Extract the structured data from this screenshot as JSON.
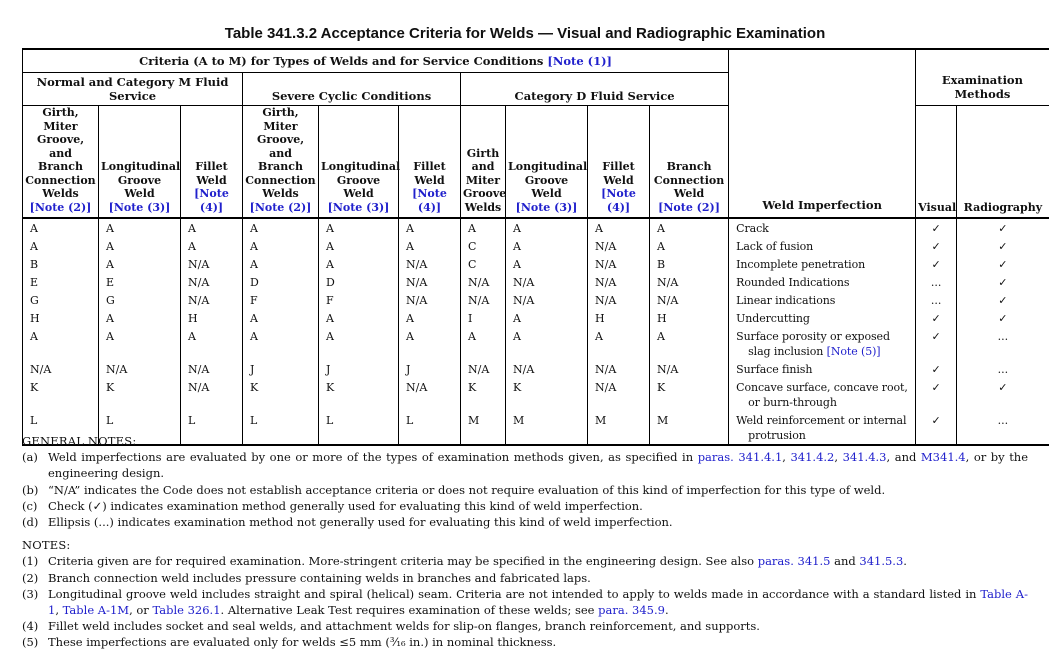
{
  "title": "Table 341.3.2 Acceptance Criteria for Welds — Visual and Radiographic Examination",
  "colors": {
    "link": "#2020cc",
    "text": "#111111",
    "border": "#000000"
  },
  "table": {
    "criteria_header": [
      {
        "t": "Criteria (A to M) for Types of Welds and for Service Conditions "
      },
      {
        "t": "[Note (1)]",
        "link": true
      }
    ],
    "service_groups": [
      "Normal and Category M Fluid Service",
      "Severe Cyclic Conditions",
      "Category D Fluid Service"
    ],
    "examination_methods_label": "Examination Methods",
    "weld_imperfection_label": "Weld Imperfection",
    "columns": [
      {
        "label": "Girth, Miter Groove, and Branch Connection Welds",
        "note": "[Note (2)]"
      },
      {
        "label": "Longitudinal Groove Weld",
        "note": "[Note (3)]"
      },
      {
        "label": "Fillet Weld",
        "note": "[Note (4)]"
      },
      {
        "label": "Girth, Miter Groove, and Branch Connection Welds",
        "note": "[Note (2)]"
      },
      {
        "label": "Longitudinal Groove Weld",
        "note": "[Note (3)]"
      },
      {
        "label": "Fillet Weld",
        "note": "[Note (4)]"
      },
      {
        "label": "Girth and Miter Groove Welds",
        "note": ""
      },
      {
        "label": "Longitudinal Groove Weld",
        "note": "[Note (3)]"
      },
      {
        "label": "Fillet Weld",
        "note": "[Note (4)]"
      },
      {
        "label": "Branch Connection Weld",
        "note": "[Note (2)]"
      }
    ],
    "exam_columns": [
      "Visual",
      "Radiography"
    ],
    "symbols": {
      "check": "✓",
      "ellipsis": "..."
    },
    "rows": [
      {
        "values": [
          "A",
          "A",
          "A",
          "A",
          "A",
          "A",
          "A",
          "A",
          "A",
          "A"
        ],
        "imperfection": [
          {
            "t": "Crack"
          }
        ],
        "visual": "check",
        "radiography": "check"
      },
      {
        "values": [
          "A",
          "A",
          "A",
          "A",
          "A",
          "A",
          "C",
          "A",
          "N/A",
          "A"
        ],
        "imperfection": [
          {
            "t": "Lack of fusion"
          }
        ],
        "visual": "check",
        "radiography": "check"
      },
      {
        "values": [
          "B",
          "A",
          "N/A",
          "A",
          "A",
          "N/A",
          "C",
          "A",
          "N/A",
          "B"
        ],
        "imperfection": [
          {
            "t": "Incomplete penetration"
          }
        ],
        "visual": "check",
        "radiography": "check"
      },
      {
        "values": [
          "E",
          "E",
          "N/A",
          "D",
          "D",
          "N/A",
          "N/A",
          "N/A",
          "N/A",
          "N/A"
        ],
        "imperfection": [
          {
            "t": "Rounded Indications"
          }
        ],
        "visual": "ellipsis",
        "radiography": "check"
      },
      {
        "values": [
          "G",
          "G",
          "N/A",
          "F",
          "F",
          "N/A",
          "N/A",
          "N/A",
          "N/A",
          "N/A"
        ],
        "imperfection": [
          {
            "t": "Linear indications"
          }
        ],
        "visual": "ellipsis",
        "radiography": "check"
      },
      {
        "values": [
          "H",
          "A",
          "H",
          "A",
          "A",
          "A",
          "I",
          "A",
          "H",
          "H"
        ],
        "imperfection": [
          {
            "t": "Undercutting"
          }
        ],
        "visual": "check",
        "radiography": "check"
      },
      {
        "values": [
          "A",
          "A",
          "A",
          "A",
          "A",
          "A",
          "A",
          "A",
          "A",
          "A"
        ],
        "imperfection": [
          {
            "t": "Surface porosity or exposed slag inclusion "
          },
          {
            "t": "[Note (5)]",
            "link": true
          }
        ],
        "visual": "check",
        "radiography": "ellipsis"
      },
      {
        "values": [
          "N/A",
          "N/A",
          "N/A",
          "J",
          "J",
          "J",
          "N/A",
          "N/A",
          "N/A",
          "N/A"
        ],
        "imperfection": [
          {
            "t": "Surface finish"
          }
        ],
        "visual": "check",
        "radiography": "ellipsis"
      },
      {
        "values": [
          "K",
          "K",
          "N/A",
          "K",
          "K",
          "N/A",
          "K",
          "K",
          "N/A",
          "K"
        ],
        "imperfection": [
          {
            "t": "Concave surface, concave root, or burn-through"
          }
        ],
        "visual": "check",
        "radiography": "check"
      },
      {
        "values": [
          "L",
          "L",
          "L",
          "L",
          "L",
          "L",
          "M",
          "M",
          "M",
          "M"
        ],
        "imperfection": [
          {
            "t": "Weld reinforcement or internal protrusion"
          }
        ],
        "visual": "check",
        "radiography": "ellipsis"
      }
    ]
  },
  "general_notes": {
    "heading": "GENERAL NOTES:",
    "items": [
      {
        "marker": "(a)",
        "segments": [
          {
            "t": "Weld imperfections are evaluated by one or more of the types of examination methods given, as specified in "
          },
          {
            "t": "paras. 341.4.1",
            "link": true
          },
          {
            "t": ", "
          },
          {
            "t": "341.4.2",
            "link": true
          },
          {
            "t": ", "
          },
          {
            "t": "341.4.3",
            "link": true
          },
          {
            "t": ", and "
          },
          {
            "t": "M341.4",
            "link": true
          },
          {
            "t": ", or by the engineering design."
          }
        ]
      },
      {
        "marker": "(b)",
        "segments": [
          {
            "t": "“N/A” indicates the Code does not establish acceptance criteria or does not require evaluation of this kind of imperfection for this type of weld."
          }
        ]
      },
      {
        "marker": "(c)",
        "segments": [
          {
            "t": "Check (✓) indicates examination method generally used for evaluating this kind of weld imperfection."
          }
        ]
      },
      {
        "marker": "(d)",
        "segments": [
          {
            "t": "Ellipsis (...) indicates examination method not generally used for evaluating this kind of weld imperfection."
          }
        ]
      }
    ]
  },
  "notes": {
    "heading": "NOTES:",
    "items": [
      {
        "marker": "(1)",
        "segments": [
          {
            "t": "Criteria given are for required examination. More-stringent criteria may be specified in the engineering design. See also "
          },
          {
            "t": "paras. 341.5",
            "link": true
          },
          {
            "t": " and "
          },
          {
            "t": "341.5.3",
            "link": true
          },
          {
            "t": "."
          }
        ]
      },
      {
        "marker": "(2)",
        "segments": [
          {
            "t": "Branch connection weld includes pressure containing welds in branches and fabricated laps."
          }
        ]
      },
      {
        "marker": "(3)",
        "segments": [
          {
            "t": "Longitudinal groove weld includes straight and spiral (helical) seam. Criteria are not intended to apply to welds made in accordance with a standard listed in "
          },
          {
            "t": "Table A-1",
            "link": true
          },
          {
            "t": ", "
          },
          {
            "t": "Table A-1M",
            "link": true
          },
          {
            "t": ", or "
          },
          {
            "t": "Table 326.1",
            "link": true
          },
          {
            "t": ". Alternative Leak Test requires examination of these welds; see "
          },
          {
            "t": "para. 345.9",
            "link": true
          },
          {
            "t": "."
          }
        ]
      },
      {
        "marker": "(4)",
        "segments": [
          {
            "t": "Fillet weld includes socket and seal welds, and attachment welds for slip-on flanges, branch reinforcement, and supports."
          }
        ]
      },
      {
        "marker": "(5)",
        "segments": [
          {
            "t": "These imperfections are evaluated only for welds ≤5 mm (³⁄₁₆ in.) in nominal thickness."
          }
        ]
      }
    ]
  }
}
